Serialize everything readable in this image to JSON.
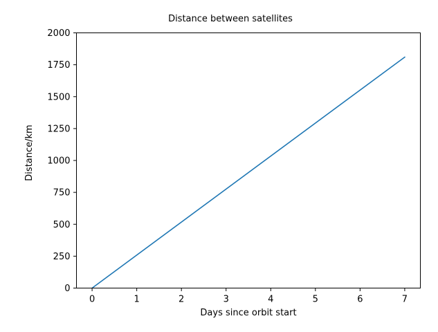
{
  "chart_data": {
    "type": "line",
    "title": "Distance between satellites",
    "xlabel": "Days since orbit start",
    "ylabel": "Distance/km",
    "xlim": [
      -0.35,
      7.35
    ],
    "ylim": [
      0,
      2000
    ],
    "xticks": [
      0,
      1,
      2,
      3,
      4,
      5,
      6,
      7
    ],
    "yticks": [
      0,
      250,
      500,
      750,
      1000,
      1250,
      1500,
      1750,
      2000
    ],
    "grid": false,
    "series": [
      {
        "color": "#1f77b4",
        "x": [
          0,
          7
        ],
        "y": [
          0,
          1810
        ]
      }
    ]
  }
}
